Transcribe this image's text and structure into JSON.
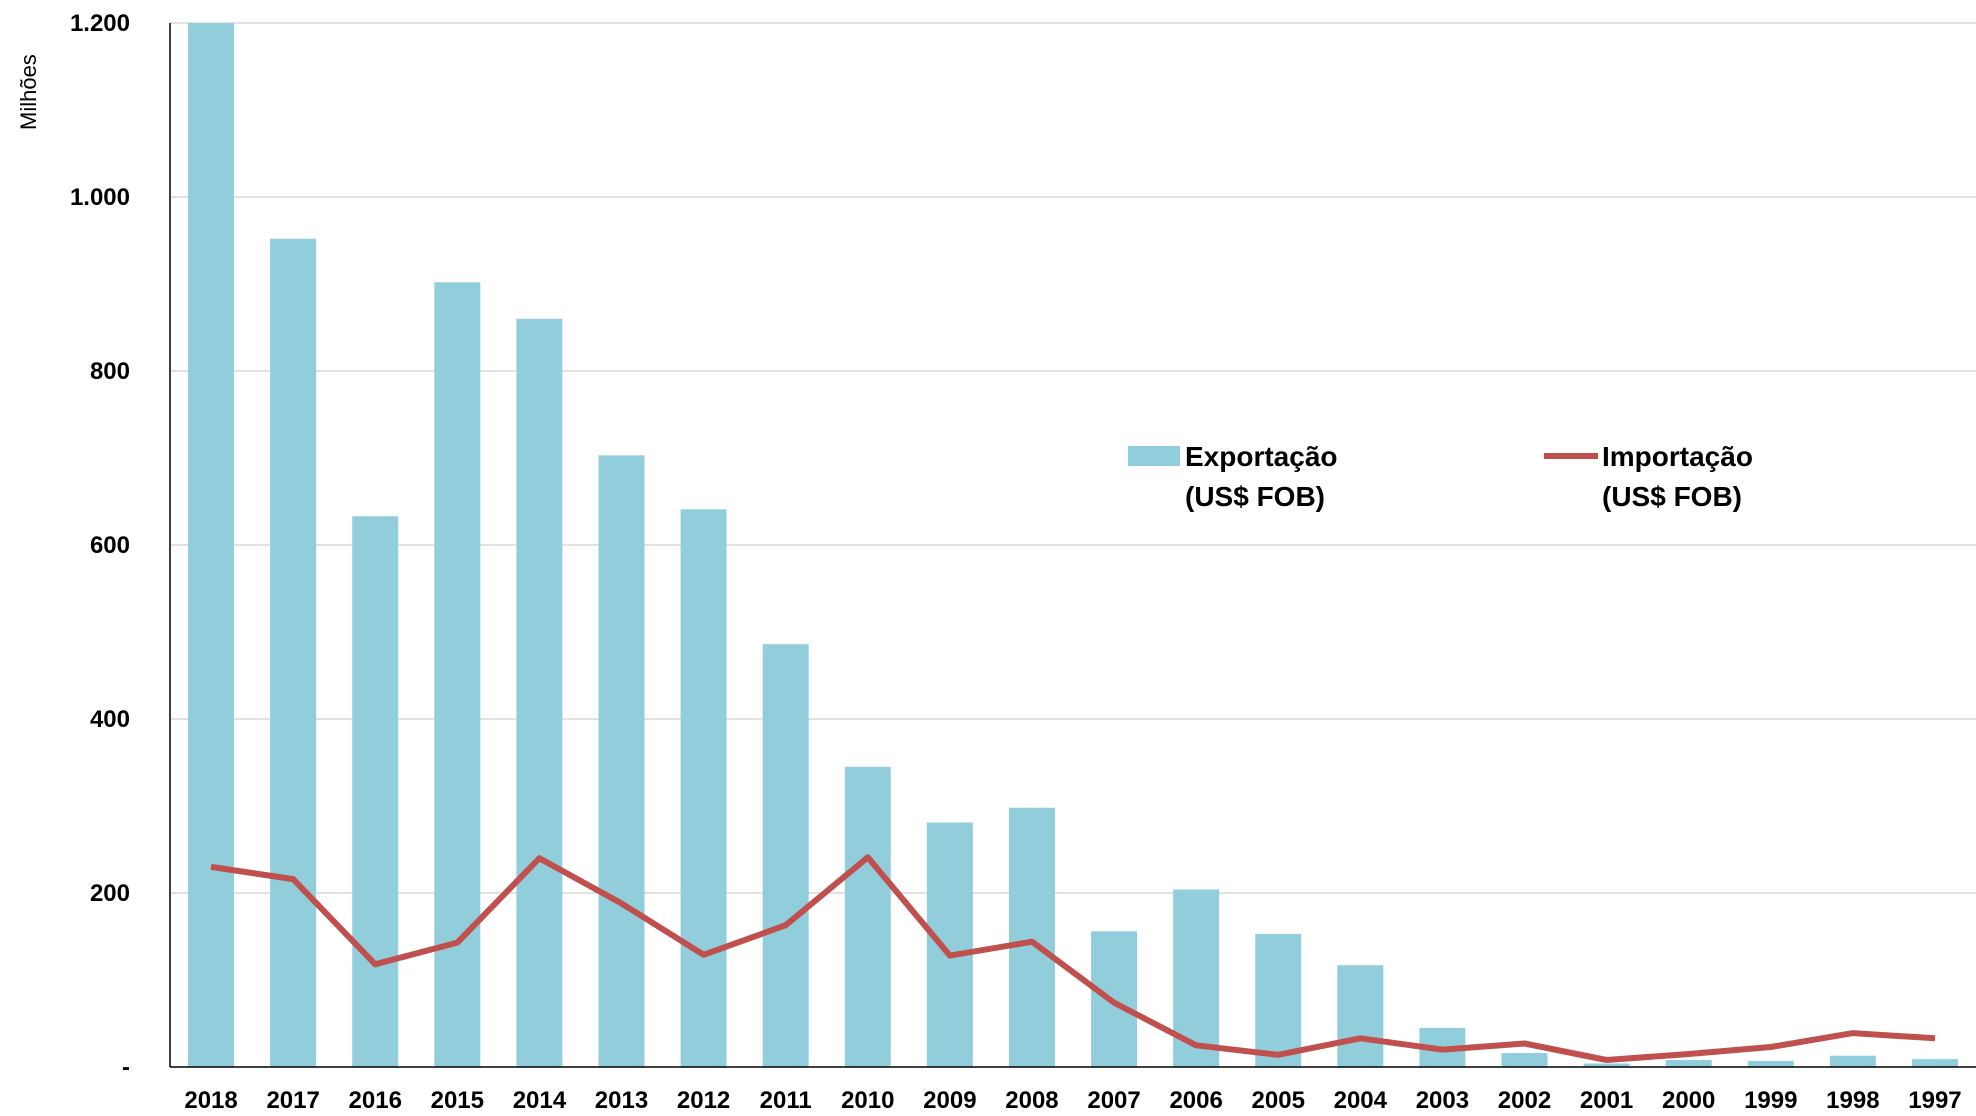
{
  "chart_data": {
    "type": "bar",
    "title": "",
    "xlabel": "",
    "ylabel": "Milhões",
    "ylim": [
      0,
      1200
    ],
    "yticks": [
      {
        "value": 0,
        "label": "-"
      },
      {
        "value": 200,
        "label": "200"
      },
      {
        "value": 400,
        "label": "400"
      },
      {
        "value": 600,
        "label": "600"
      },
      {
        "value": 800,
        "label": "800"
      },
      {
        "value": 1000,
        "label": "1.000"
      },
      {
        "value": 1200,
        "label": "1.200"
      }
    ],
    "grid": true,
    "legend_position": "center",
    "categories": [
      "2018",
      "2017",
      "2016",
      "2015",
      "2014",
      "2013",
      "2012",
      "2011",
      "2010",
      "2009",
      "2008",
      "2007",
      "2006",
      "2005",
      "2004",
      "2003",
      "2002",
      "2001",
      "2000",
      "1999",
      "1998",
      "1997"
    ],
    "series": [
      {
        "name": "Exportação\n(US$ FOB)",
        "name_lines": [
          "Exportação",
          "(US$ FOB)"
        ],
        "type": "bar",
        "color": "#92CDDC",
        "values": [
          1200,
          952,
          633,
          902,
          860,
          703,
          641,
          486,
          345,
          281,
          298,
          156,
          204,
          153,
          117,
          45,
          16,
          4,
          8,
          7,
          13,
          9
        ]
      },
      {
        "name": "Importação\n(US$ FOB)",
        "name_lines": [
          "Importação",
          "(US$ FOB)"
        ],
        "type": "line",
        "color": "#C0504D",
        "values": [
          230,
          216,
          118,
          143,
          240,
          188,
          129,
          163,
          241,
          128,
          144,
          74,
          25,
          14,
          33,
          20,
          27,
          8,
          15,
          23,
          39,
          33
        ]
      }
    ],
    "gridline_color": "#D9D9D9",
    "axis_color": "#000000"
  }
}
